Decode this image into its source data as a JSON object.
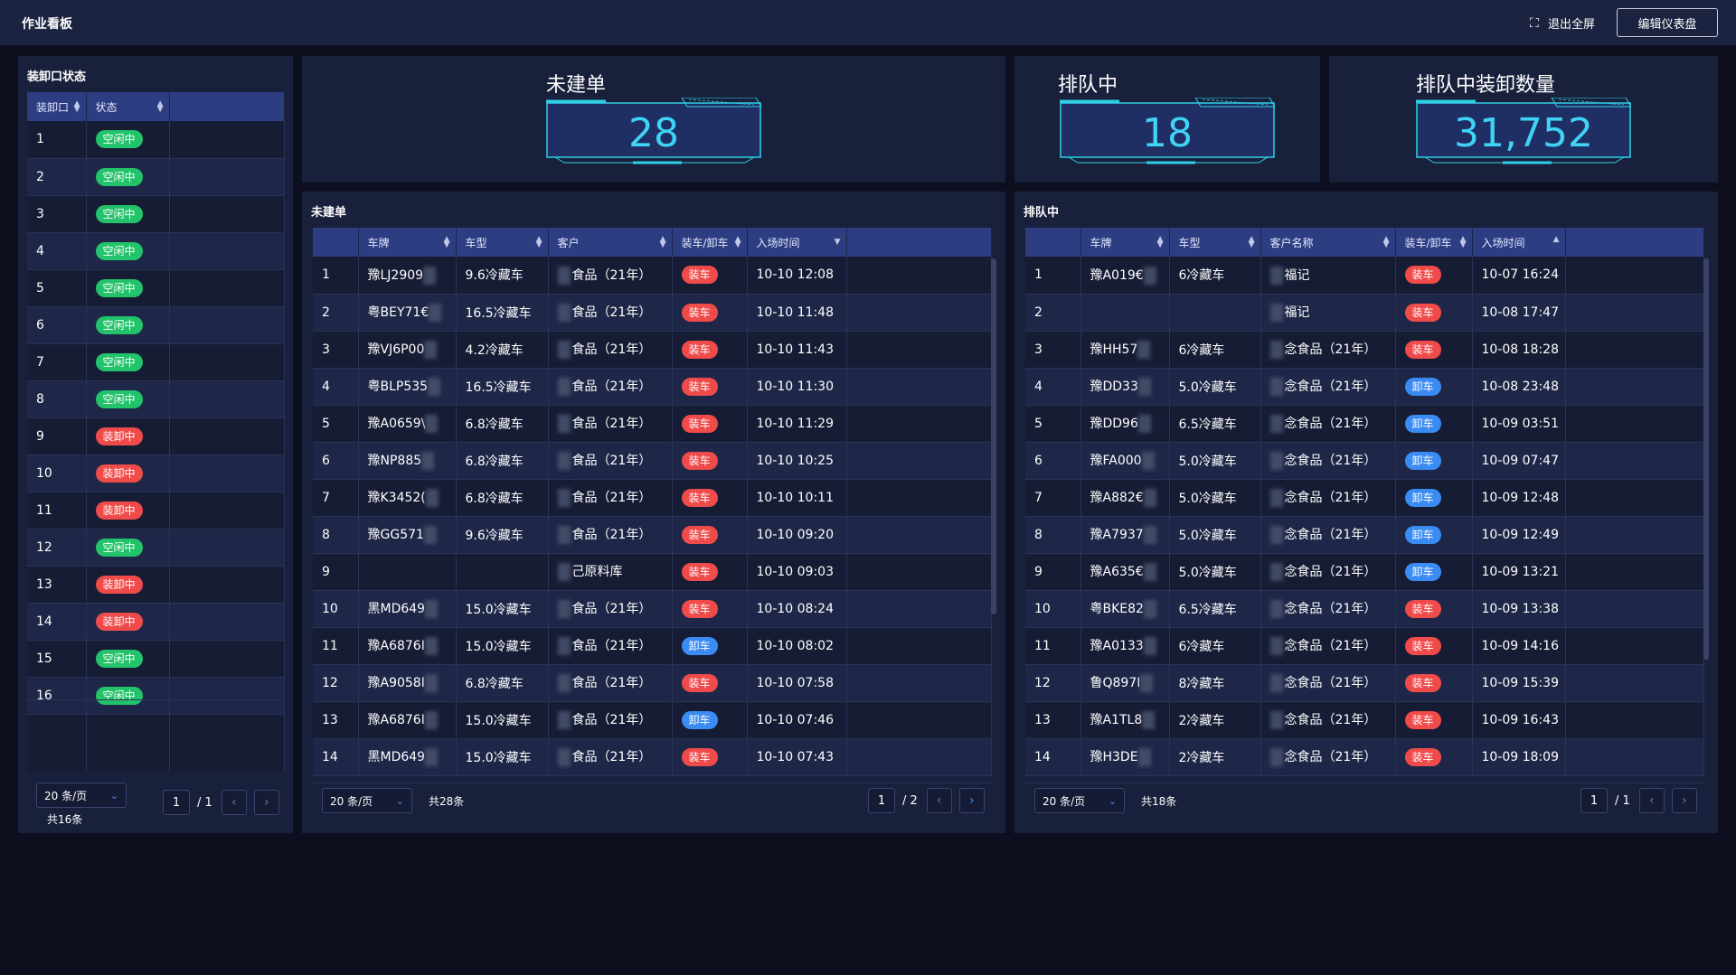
{
  "app": {
    "title": "作业看板",
    "exit_fullscreen": "退出全屏",
    "edit_dashboard": "编辑仪表盘"
  },
  "kpis": [
    {
      "label": "未建单",
      "value": "28"
    },
    {
      "label": "排队中",
      "value": "18"
    },
    {
      "label": "排队中装卸数量",
      "value": "31,752"
    }
  ],
  "dock": {
    "title": "装卸口状态",
    "columns": [
      "装卸口",
      "状态"
    ],
    "rows": [
      {
        "id": "1",
        "status": "空闲中",
        "color": "green"
      },
      {
        "id": "2",
        "status": "空闲中",
        "color": "green"
      },
      {
        "id": "3",
        "status": "空闲中",
        "color": "green"
      },
      {
        "id": "4",
        "status": "空闲中",
        "color": "green"
      },
      {
        "id": "5",
        "status": "空闲中",
        "color": "green"
      },
      {
        "id": "6",
        "status": "空闲中",
        "color": "green"
      },
      {
        "id": "7",
        "status": "空闲中",
        "color": "green"
      },
      {
        "id": "8",
        "status": "空闲中",
        "color": "green"
      },
      {
        "id": "9",
        "status": "装卸中",
        "color": "red"
      },
      {
        "id": "10",
        "status": "装卸中",
        "color": "red"
      },
      {
        "id": "11",
        "status": "装卸中",
        "color": "red"
      },
      {
        "id": "12",
        "status": "空闲中",
        "color": "green"
      },
      {
        "id": "13",
        "status": "装卸中",
        "color": "red"
      },
      {
        "id": "14",
        "status": "装卸中",
        "color": "red"
      },
      {
        "id": "15",
        "status": "空闲中",
        "color": "green"
      },
      {
        "id": "16",
        "status": "空闲中",
        "color": "green"
      }
    ],
    "pager": {
      "page_size": "20 条/页",
      "total": "共16条",
      "page": "1",
      "pages": "/ 1"
    }
  },
  "unbuilt": {
    "title": "未建单",
    "columns": [
      "车牌",
      "车型",
      "客户",
      "装车/卸车",
      "入场时间"
    ],
    "rows": [
      {
        "no": "1",
        "plate": "豫LJ2909",
        "type": "9.6冷藏车",
        "customer": "食品（21年）",
        "op": "装车",
        "color": "red",
        "time": "10-10 12:08"
      },
      {
        "no": "2",
        "plate": "粤BEY71€",
        "type": "16.5冷藏车",
        "customer": "食品（21年）",
        "op": "装车",
        "color": "red",
        "time": "10-10 11:48"
      },
      {
        "no": "3",
        "plate": "豫VJ6P00",
        "type": "4.2冷藏车",
        "customer": "食品（21年）",
        "op": "装车",
        "color": "red",
        "time": "10-10 11:43"
      },
      {
        "no": "4",
        "plate": "粤BLP535",
        "type": "16.5冷藏车",
        "customer": "食品（21年）",
        "op": "装车",
        "color": "red",
        "time": "10-10 11:30"
      },
      {
        "no": "5",
        "plate": "豫A0659\\",
        "type": "6.8冷藏车",
        "customer": "食品（21年）",
        "op": "装车",
        "color": "red",
        "time": "10-10 11:29"
      },
      {
        "no": "6",
        "plate": "豫NP885",
        "type": "6.8冷藏车",
        "customer": "食品（21年）",
        "op": "装车",
        "color": "red",
        "time": "10-10 10:25"
      },
      {
        "no": "7",
        "plate": "豫K3452(",
        "type": "6.8冷藏车",
        "customer": "食品（21年）",
        "op": "装车",
        "color": "red",
        "time": "10-10 10:11"
      },
      {
        "no": "8",
        "plate": "豫GG571",
        "type": "9.6冷藏车",
        "customer": "食品（21年）",
        "op": "装车",
        "color": "red",
        "time": "10-10 09:20"
      },
      {
        "no": "9",
        "plate": "",
        "type": "",
        "customer": "己原料库",
        "op": "装车",
        "color": "red",
        "time": "10-10 09:03"
      },
      {
        "no": "10",
        "plate": "黑MD649",
        "type": "15.0冷藏车",
        "customer": "食品（21年）",
        "op": "装车",
        "color": "red",
        "time": "10-10 08:24"
      },
      {
        "no": "11",
        "plate": "豫A6876I",
        "type": "15.0冷藏车",
        "customer": "食品（21年）",
        "op": "卸车",
        "color": "blue",
        "time": "10-10 08:02"
      },
      {
        "no": "12",
        "plate": "豫A9058I",
        "type": "6.8冷藏车",
        "customer": "食品（21年）",
        "op": "装车",
        "color": "red",
        "time": "10-10 07:58"
      },
      {
        "no": "13",
        "plate": "豫A6876I",
        "type": "15.0冷藏车",
        "customer": "食品（21年）",
        "op": "卸车",
        "color": "blue",
        "time": "10-10 07:46"
      },
      {
        "no": "14",
        "plate": "黑MD649",
        "type": "15.0冷藏车",
        "customer": "食品（21年）",
        "op": "装车",
        "color": "red",
        "time": "10-10 07:43"
      }
    ],
    "pager": {
      "page_size": "20 条/页",
      "total": "共28条",
      "page": "1",
      "pages": "/ 2"
    }
  },
  "queue": {
    "title": "排队中",
    "columns": [
      "车牌",
      "车型",
      "客户名称",
      "装车/卸车",
      "入场时间"
    ],
    "rows": [
      {
        "no": "1",
        "plate": "豫A019€",
        "type": "6冷藏车",
        "customer": "福记",
        "op": "装车",
        "color": "red",
        "time": "10-07 16:24"
      },
      {
        "no": "2",
        "plate": "",
        "type": "",
        "customer": "福记",
        "op": "装车",
        "color": "red",
        "time": "10-08 17:47"
      },
      {
        "no": "3",
        "plate": "豫HH57",
        "type": "6冷藏车",
        "customer": "念食品（21年）",
        "op": "装车",
        "color": "red",
        "time": "10-08 18:28"
      },
      {
        "no": "4",
        "plate": "豫DD33",
        "type": "5.0冷藏车",
        "customer": "念食品（21年）",
        "op": "卸车",
        "color": "blue",
        "time": "10-08 23:48"
      },
      {
        "no": "5",
        "plate": "豫DD96",
        "type": "6.5冷藏车",
        "customer": "念食品（21年）",
        "op": "卸车",
        "color": "blue",
        "time": "10-09 03:51"
      },
      {
        "no": "6",
        "plate": "豫FA000",
        "type": "5.0冷藏车",
        "customer": "念食品（21年）",
        "op": "卸车",
        "color": "blue",
        "time": "10-09 07:47"
      },
      {
        "no": "7",
        "plate": "豫A882€",
        "type": "5.0冷藏车",
        "customer": "念食品（21年）",
        "op": "卸车",
        "color": "blue",
        "time": "10-09 12:48"
      },
      {
        "no": "8",
        "plate": "豫A7937",
        "type": "5.0冷藏车",
        "customer": "念食品（21年）",
        "op": "卸车",
        "color": "blue",
        "time": "10-09 12:49"
      },
      {
        "no": "9",
        "plate": "豫A635€",
        "type": "5.0冷藏车",
        "customer": "念食品（21年）",
        "op": "卸车",
        "color": "blue",
        "time": "10-09 13:21"
      },
      {
        "no": "10",
        "plate": "粤BKE82",
        "type": "6.5冷藏车",
        "customer": "念食品（21年）",
        "op": "装车",
        "color": "red",
        "time": "10-09 13:38"
      },
      {
        "no": "11",
        "plate": "豫A0133",
        "type": "6冷藏车",
        "customer": "念食品（21年）",
        "op": "装车",
        "color": "red",
        "time": "10-09 14:16"
      },
      {
        "no": "12",
        "plate": "鲁Q897I",
        "type": "8冷藏车",
        "customer": "念食品（21年）",
        "op": "装车",
        "color": "red",
        "time": "10-09 15:39"
      },
      {
        "no": "13",
        "plate": "豫A1TL8",
        "type": "2冷藏车",
        "customer": "念食品（21年）",
        "op": "装车",
        "color": "red",
        "time": "10-09 16:43"
      },
      {
        "no": "14",
        "plate": "豫H3DE",
        "type": "2冷藏车",
        "customer": "念食品（21年）",
        "op": "装车",
        "color": "red",
        "time": "10-09 18:09"
      }
    ],
    "pager": {
      "page_size": "20 条/页",
      "total": "共18条",
      "page": "1",
      "pages": "/ 1"
    }
  },
  "icons": {
    "exit_fullscreen": "compress-icon",
    "sort": "sort-icon",
    "prev": "chevron-left-icon",
    "next": "chevron-right-icon",
    "dropdown": "chevron-down-icon"
  }
}
